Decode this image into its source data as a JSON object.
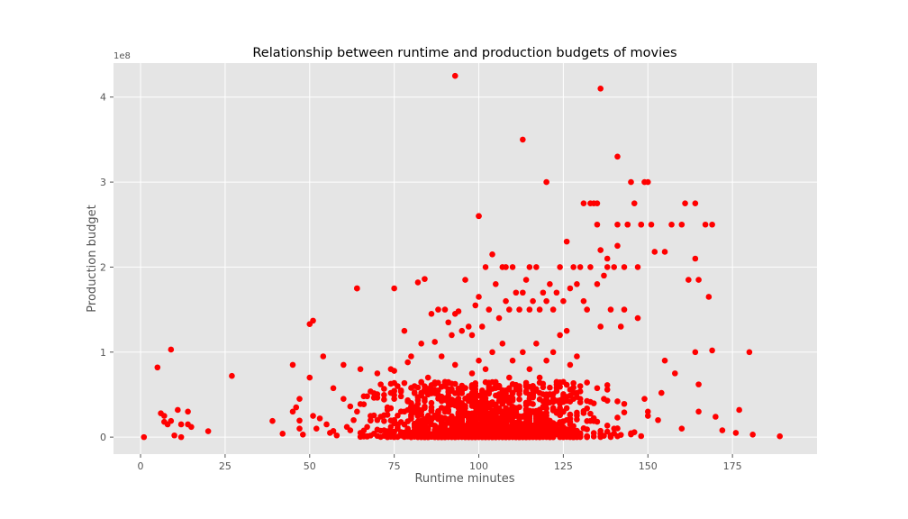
{
  "chart_data": {
    "type": "scatter",
    "title": "Relationship between runtime and production budgets of movies",
    "xlabel": "Runtime minutes",
    "ylabel": "Production budget",
    "y_multiplier": "1e8",
    "xlim": [
      -8,
      200
    ],
    "ylim": [
      -20000000,
      440000000
    ],
    "x_ticks": [
      0,
      25,
      50,
      75,
      100,
      125,
      150,
      175
    ],
    "x_tick_labels": [
      "0",
      "25",
      "50",
      "75",
      "100",
      "125",
      "150",
      "175"
    ],
    "y_ticks": [
      0,
      100000000,
      200000000,
      300000000,
      400000000
    ],
    "y_tick_labels": [
      "0",
      "1",
      "2",
      "3",
      "4"
    ],
    "grid": true,
    "style": "ggplot",
    "marker_color": "#ff0000",
    "series": [
      {
        "x": [
          1,
          5,
          6,
          7,
          7,
          8,
          9,
          9,
          10,
          11,
          12,
          12,
          14,
          14,
          15,
          20,
          27,
          39,
          42,
          45,
          45,
          46,
          47,
          47,
          48,
          50,
          50,
          51,
          51,
          52,
          53,
          54,
          55,
          56,
          58,
          60,
          60,
          61,
          62,
          63,
          64,
          64,
          65,
          65,
          66,
          66,
          67,
          68,
          69,
          70,
          70,
          71,
          72,
          73,
          74,
          75,
          75,
          75,
          76,
          76,
          77,
          77,
          78,
          78,
          79,
          79,
          80,
          80,
          81,
          81,
          82,
          82,
          83,
          83,
          84,
          84,
          85,
          85,
          86,
          86,
          87,
          87,
          88,
          88,
          89,
          89,
          90,
          90,
          91,
          91,
          92,
          92,
          93,
          93,
          93,
          94,
          94,
          95,
          95,
          96,
          96,
          97,
          97,
          98,
          98,
          99,
          99,
          100,
          100,
          100,
          101,
          101,
          102,
          102,
          103,
          103,
          104,
          104,
          105,
          105,
          106,
          106,
          107,
          107,
          108,
          108,
          109,
          109,
          110,
          110,
          111,
          111,
          112,
          112,
          113,
          113,
          114,
          114,
          115,
          115,
          116,
          116,
          117,
          117,
          118,
          118,
          119,
          119,
          120,
          120,
          121,
          121,
          122,
          122,
          123,
          123,
          124,
          124,
          125,
          125,
          126,
          126,
          127,
          127,
          128,
          128,
          129,
          129,
          130,
          130,
          131,
          131,
          132,
          133,
          134,
          135,
          135,
          136,
          136,
          137,
          138,
          139,
          140,
          141,
          141,
          142,
          143,
          144,
          145,
          146,
          147,
          148,
          149,
          150,
          150,
          152,
          153,
          154,
          155,
          157,
          158,
          160,
          161,
          162,
          164,
          164,
          165,
          165,
          167,
          168,
          169,
          170,
          172,
          176,
          177,
          180,
          181,
          189,
          93,
          136,
          113,
          120,
          100,
          141,
          149,
          150,
          148,
          133,
          135,
          138,
          144,
          147,
          151,
          160,
          164,
          169,
          155,
          165,
          143,
          115,
          108,
          64,
          74
        ],
        "y": [
          0,
          82000000,
          28000000,
          25000000,
          18000000,
          15000000,
          103000000,
          19000000,
          2000000,
          32000000,
          15000000,
          0,
          30000000,
          15000000,
          12000000,
          7000000,
          72000000,
          19000000,
          4000000,
          85000000,
          30000000,
          35000000,
          45000000,
          10000000,
          3000000,
          133000000,
          70000000,
          137000000,
          25000000,
          10000000,
          22000000,
          95000000,
          15000000,
          5000000,
          2000000,
          85000000,
          45000000,
          12000000,
          8000000,
          20000000,
          175000000,
          30000000,
          80000000,
          5000000,
          48000000,
          1000000,
          12000000,
          25000000,
          4000000,
          75000000,
          20000000,
          62000000,
          8000000,
          35000000,
          2000000,
          175000000,
          78000000,
          45000000,
          60000000,
          15000000,
          55000000,
          3000000,
          125000000,
          30000000,
          88000000,
          10000000,
          95000000,
          40000000,
          60000000,
          5000000,
          182000000,
          25000000,
          110000000,
          12000000,
          186000000,
          45000000,
          70000000,
          18000000,
          145000000,
          35000000,
          112000000,
          8000000,
          150000000,
          55000000,
          95000000,
          20000000,
          150000000,
          65000000,
          135000000,
          30000000,
          120000000,
          15000000,
          145000000,
          85000000,
          40000000,
          148000000,
          25000000,
          125000000,
          60000000,
          185000000,
          10000000,
          130000000,
          45000000,
          120000000,
          75000000,
          155000000,
          35000000,
          260000000,
          165000000,
          90000000,
          130000000,
          50000000,
          200000000,
          80000000,
          150000000,
          20000000,
          215000000,
          100000000,
          180000000,
          60000000,
          140000000,
          30000000,
          200000000,
          110000000,
          160000000,
          45000000,
          150000000,
          70000000,
          200000000,
          90000000,
          170000000,
          25000000,
          150000000,
          60000000,
          170000000,
          100000000,
          185000000,
          40000000,
          150000000,
          80000000,
          160000000,
          55000000,
          200000000,
          110000000,
          150000000,
          70000000,
          170000000,
          35000000,
          160000000,
          90000000,
          180000000,
          50000000,
          150000000,
          100000000,
          170000000,
          30000000,
          200000000,
          120000000,
          160000000,
          65000000,
          230000000,
          125000000,
          175000000,
          85000000,
          200000000,
          45000000,
          180000000,
          95000000,
          200000000,
          60000000,
          160000000,
          275000000,
          150000000,
          200000000,
          275000000,
          250000000,
          180000000,
          220000000,
          130000000,
          190000000,
          210000000,
          150000000,
          200000000,
          225000000,
          250000000,
          130000000,
          150000000,
          250000000,
          300000000,
          275000000,
          140000000,
          250000000,
          45000000,
          30000000,
          25000000,
          218000000,
          20000000,
          52000000,
          90000000,
          250000000,
          75000000,
          10000000,
          275000000,
          185000000,
          210000000,
          100000000,
          30000000,
          62000000,
          250000000,
          165000000,
          102000000,
          24000000,
          8000000,
          5000000,
          32000000,
          100000000,
          3000000,
          1000000,
          425000000,
          410000000,
          350000000,
          300000000,
          260000000,
          330000000,
          300000000,
          300000000,
          250000000,
          275000000,
          275000000,
          200000000,
          250000000,
          200000000,
          250000000,
          250000000,
          275000000,
          250000000,
          218000000,
          185000000,
          200000000,
          200000000,
          200000000,
          175000000,
          80000000
        ]
      }
    ]
  }
}
